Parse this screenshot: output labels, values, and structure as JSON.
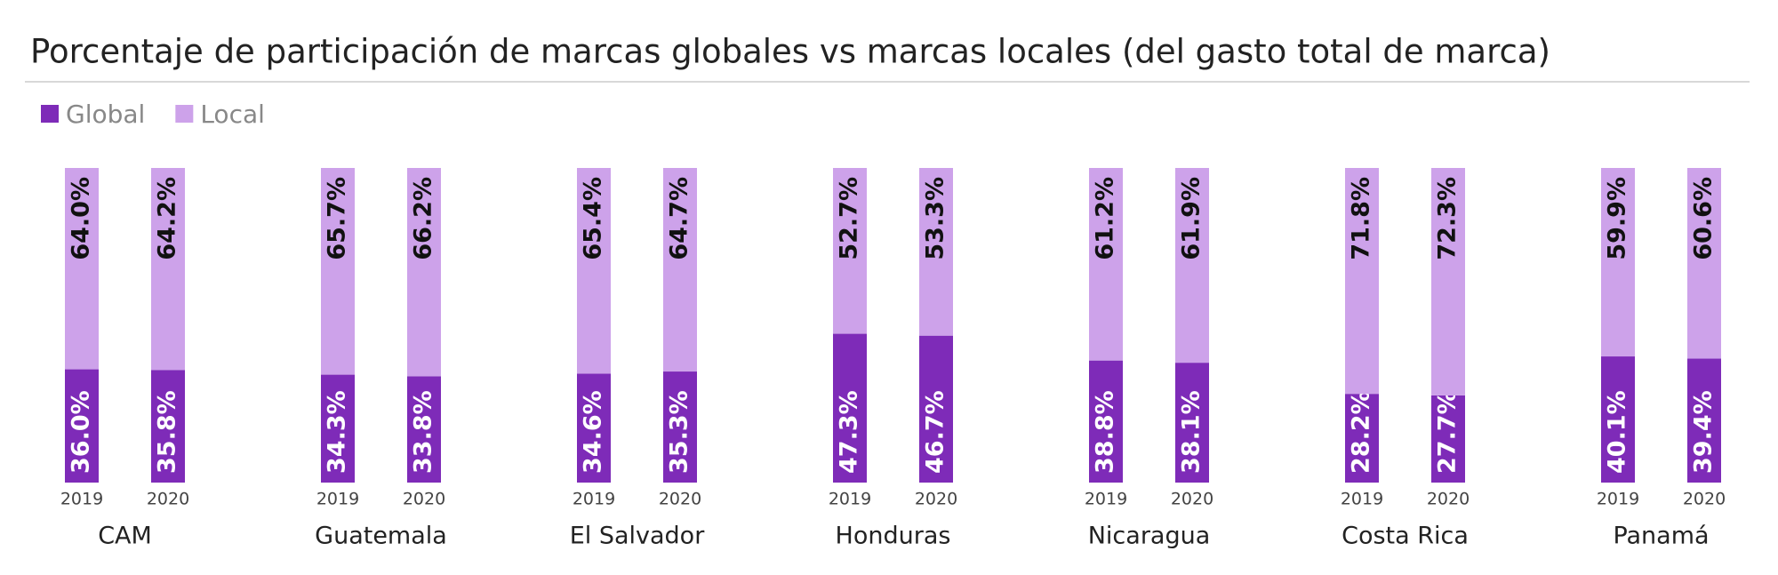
{
  "chart_data": {
    "type": "bar",
    "stacked": true,
    "title": "Porcentaje de participación de marcas globales vs marcas locales (del gasto total de marca)",
    "groups": [
      "CAM",
      "Guatemala",
      "El Salvador",
      "Honduras",
      "Nicaragua",
      "Costa Rica",
      "Panamá"
    ],
    "categories": [
      "2019",
      "2020",
      "2019",
      "2020",
      "2019",
      "2020",
      "2019",
      "2020",
      "2019",
      "2020",
      "2019",
      "2020",
      "2019",
      "2020"
    ],
    "series": [
      {
        "name": "Global",
        "color": "#7e2bb8",
        "values": [
          36.0,
          35.8,
          34.3,
          33.8,
          34.6,
          35.3,
          47.3,
          46.7,
          38.8,
          38.1,
          28.2,
          27.7,
          40.1,
          39.4
        ],
        "value_labels": [
          "36.0%",
          "35.8%",
          "34.3%",
          "33.8%",
          "34.6%",
          "35.3%",
          "47.3%",
          "46.7%",
          "38.8%",
          "38.1%",
          "28.2%",
          "27.7%",
          "40.1%",
          "39.4%"
        ]
      },
      {
        "name": "Local",
        "color": "#cda2ea",
        "values": [
          64.0,
          64.2,
          65.7,
          66.2,
          65.4,
          64.7,
          52.7,
          53.3,
          61.2,
          61.9,
          71.8,
          72.3,
          59.9,
          60.6
        ],
        "value_labels": [
          "64.0%",
          "64.2%",
          "65.7%",
          "66.2%",
          "65.4%",
          "64.7%",
          "52.7%",
          "53.3%",
          "61.2%",
          "61.9%",
          "71.8%",
          "72.3%",
          "59.9%",
          "60.6%"
        ]
      }
    ],
    "legend": "top-left"
  }
}
